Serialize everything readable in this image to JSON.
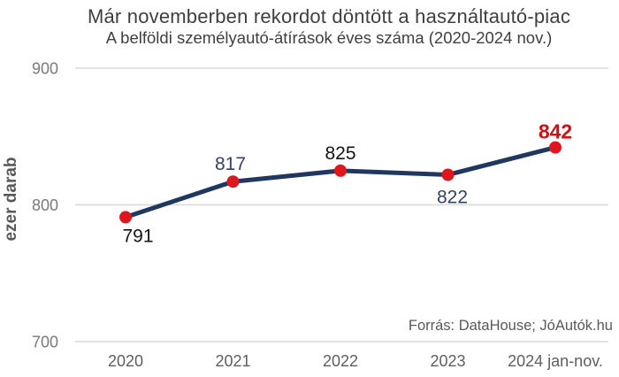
{
  "chart_data": {
    "type": "line",
    "title": "Már novemberben rekordot döntött a használtautó-piac",
    "subtitle": "A belföldi személyautó-átírások éves száma (2020-2024 nov.)",
    "ylabel": "ezer darab",
    "source": "Forrás: DataHouse; JóAutók.hu",
    "categories": [
      "2020",
      "2021",
      "2022",
      "2023",
      "2024 jan-nov."
    ],
    "values": [
      791,
      817,
      825,
      822,
      842
    ],
    "data_labels": [
      "791",
      "817",
      "825",
      "822",
      "842"
    ],
    "ylim": [
      700,
      900
    ],
    "yticks": [
      700,
      800,
      900
    ],
    "grid": true,
    "legend": false,
    "highlight_index": 4,
    "colors": {
      "line": "#20375f",
      "marker": "#e0161f",
      "gridline": "#d8d8d8",
      "ytick": "#7a7a7a",
      "xtick": "#5f5f5f",
      "title": "#3f3f3f",
      "highlight_label": "#cf1016"
    },
    "label_colors": [
      "#141414",
      "#32435f",
      "#141414",
      "#32435f",
      "#cf1016"
    ],
    "label_positions": [
      "below",
      "above",
      "above",
      "below",
      "above"
    ]
  }
}
